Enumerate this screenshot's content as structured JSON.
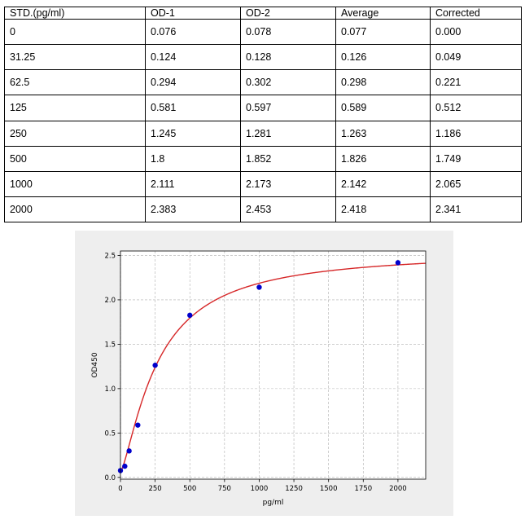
{
  "table": {
    "headers": [
      "STD.(pg/ml)",
      "OD-1",
      "OD-2",
      "Average",
      "Corrected"
    ],
    "rows": [
      [
        "0",
        "0.076",
        "0.078",
        "0.077",
        "0.000"
      ],
      [
        "31.25",
        "0.124",
        "0.128",
        "0.126",
        "0.049"
      ],
      [
        "62.5",
        "0.294",
        "0.302",
        "0.298",
        "0.221"
      ],
      [
        "125",
        "0.581",
        "0.597",
        "0.589",
        "0.512"
      ],
      [
        "250",
        "1.245",
        "1.281",
        "1.263",
        "1.186"
      ],
      [
        "500",
        "1.8",
        "1.852",
        "1.826",
        "1.749"
      ],
      [
        "1000",
        "2.111",
        "2.173",
        "2.142",
        "2.065"
      ],
      [
        "2000",
        "2.383",
        "2.453",
        "2.418",
        "2.341"
      ]
    ]
  },
  "chart_data": {
    "type": "scatter",
    "xlabel": "pg/ml",
    "ylabel": "OD450",
    "xlim": [
      0,
      2200
    ],
    "ylim": [
      -0.02,
      2.55
    ],
    "xticks": [
      0,
      250,
      500,
      750,
      1000,
      1250,
      1500,
      1750,
      2000
    ],
    "xtick_labels": [
      "0",
      "250",
      "500",
      "750",
      "1000",
      "1250",
      "1500",
      "1750",
      "2000"
    ],
    "yticks": [
      0.0,
      0.5,
      1.0,
      1.5,
      2.0,
      2.5
    ],
    "ytick_labels": [
      "0.0",
      "0.5",
      "1.0",
      "1.5",
      "2.0",
      "2.5"
    ],
    "grid": true,
    "points": {
      "x": [
        0,
        31.25,
        62.5,
        125,
        250,
        500,
        1000,
        2000
      ],
      "y": [
        0.077,
        0.126,
        0.298,
        0.589,
        1.263,
        1.826,
        2.142,
        2.418
      ]
    },
    "fit_curve": {
      "type": "4PL",
      "A": 0.06,
      "B": 1.35,
      "C": 270,
      "D": 2.55
    },
    "colors": {
      "points": "#0000cc",
      "curve": "#d62728",
      "grid": "#b0b0b0",
      "plot_bg": "#ffffff",
      "figure_bg": "#eeeeee"
    }
  }
}
